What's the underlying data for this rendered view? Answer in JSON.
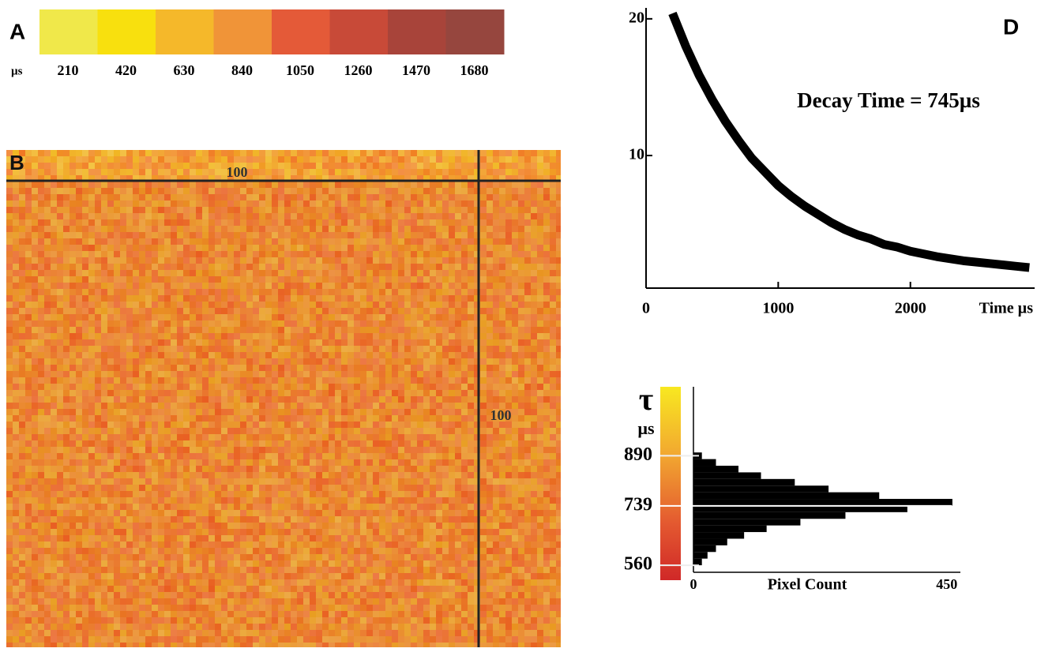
{
  "chart_data": [
    {
      "type": "colorbar",
      "panel": "A",
      "unit": "µs",
      "values": [
        210,
        420,
        630,
        840,
        1050,
        1260,
        1470,
        1680
      ],
      "colors": [
        "#f0e84a",
        "#f8e00e",
        "#f5b82a",
        "#f09438",
        "#e45a38",
        "#c84a38",
        "#a8443a",
        "#96463e"
      ]
    },
    {
      "type": "heatmap",
      "panel": "B",
      "annotations": [
        "100",
        "100"
      ]
    },
    {
      "type": "line",
      "panel": "D",
      "annotation": "Decay Time = 745µs",
      "x_label": "Time µs",
      "x": [
        200,
        300,
        400,
        500,
        600,
        700,
        800,
        900,
        1000,
        1100,
        1200,
        1300,
        1400,
        1500,
        1600,
        1700,
        1800,
        1900,
        2000,
        2200,
        2400,
        2600,
        2800,
        2900
      ],
      "values": [
        20.4,
        18.0,
        15.9,
        14.1,
        12.5,
        11.1,
        9.8,
        8.8,
        7.8,
        7.0,
        6.3,
        5.7,
        5.1,
        4.6,
        4.2,
        3.9,
        3.5,
        3.3,
        3.0,
        2.6,
        2.3,
        2.1,
        1.9,
        1.8
      ],
      "color": "#000000",
      "xlim": [
        0,
        2940
      ],
      "xticks": [
        0,
        1000,
        2000
      ],
      "ylim": [
        0.3,
        20.8
      ],
      "yticks": [
        10,
        20
      ]
    },
    {
      "type": "histogram",
      "symbol": "τ",
      "unit": "µs",
      "x_label": "Pixel Count",
      "bins": [
        560,
        580,
        600,
        620,
        640,
        660,
        680,
        700,
        720,
        740,
        760,
        780,
        800,
        820,
        840,
        860,
        880,
        900
      ],
      "values": [
        15,
        25,
        40,
        60,
        90,
        130,
        190,
        270,
        380,
        460,
        330,
        240,
        180,
        120,
        80,
        40,
        15
      ],
      "color": "#000000",
      "ylim": [
        515,
        1098
      ],
      "yticks": [
        560,
        739,
        890
      ],
      "xlim": [
        0,
        470
      ],
      "xticks": [
        0,
        450
      ]
    }
  ]
}
